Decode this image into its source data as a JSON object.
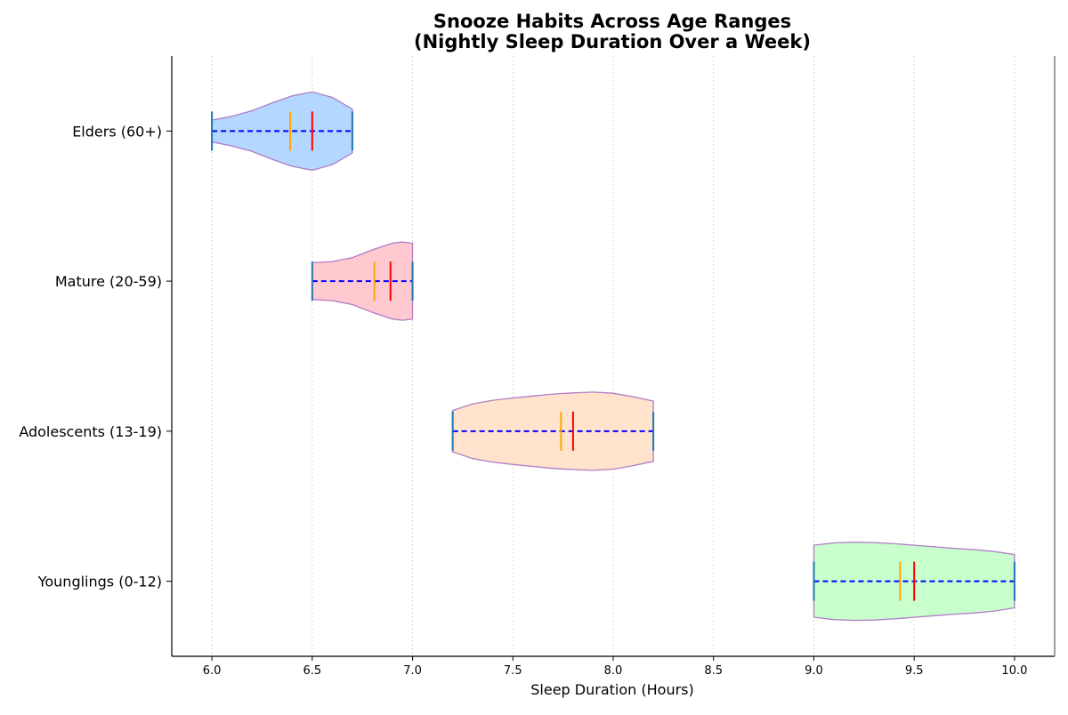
{
  "chart_data": {
    "type": "violin",
    "orientation": "horizontal",
    "title": "Snooze Habits Across Age Ranges",
    "subtitle": "(Nightly Sleep Duration Over a Week)",
    "xlabel": "Sleep Duration (Hours)",
    "ylabel": "",
    "xlim": [
      5.8,
      10.2
    ],
    "xticks": [
      6.0,
      6.5,
      7.0,
      7.5,
      8.0,
      8.5,
      9.0,
      9.5,
      10.0
    ],
    "xtick_labels": [
      "6.0",
      "6.5",
      "7.0",
      "7.5",
      "8.0",
      "8.5",
      "9.0",
      "9.5",
      "10.0"
    ],
    "grid": "x-dotted",
    "categories": [
      "Elders (60+)",
      "Mature (20-59)",
      "Adolescents (13-19)",
      "Younglings (0-12)"
    ],
    "series": [
      {
        "name": "Elders (60+)",
        "fill": "#b3d7ff",
        "min": 6.0,
        "max": 6.7,
        "mean": 6.5,
        "median": 6.39,
        "profile": [
          [
            6.0,
            0.28
          ],
          [
            6.1,
            0.38
          ],
          [
            6.2,
            0.52
          ],
          [
            6.3,
            0.72
          ],
          [
            6.4,
            0.9
          ],
          [
            6.5,
            1.0
          ],
          [
            6.6,
            0.86
          ],
          [
            6.7,
            0.56
          ]
        ]
      },
      {
        "name": "Mature (20-59)",
        "fill": "#ffc9cf",
        "min": 6.5,
        "max": 7.0,
        "mean": 6.89,
        "median": 6.81,
        "profile": [
          [
            6.5,
            0.47
          ],
          [
            6.6,
            0.5
          ],
          [
            6.7,
            0.6
          ],
          [
            6.8,
            0.8
          ],
          [
            6.9,
            0.97
          ],
          [
            6.95,
            1.0
          ],
          [
            7.0,
            0.97
          ]
        ]
      },
      {
        "name": "Adolescents (13-19)",
        "fill": "#ffe3cc",
        "min": 7.2,
        "max": 8.2,
        "mean": 7.8,
        "median": 7.74,
        "profile": [
          [
            7.2,
            0.53
          ],
          [
            7.3,
            0.7
          ],
          [
            7.4,
            0.79
          ],
          [
            7.5,
            0.85
          ],
          [
            7.6,
            0.9
          ],
          [
            7.7,
            0.95
          ],
          [
            7.8,
            0.98
          ],
          [
            7.9,
            1.0
          ],
          [
            8.0,
            0.97
          ],
          [
            8.1,
            0.88
          ],
          [
            8.2,
            0.77
          ]
        ]
      },
      {
        "name": "Younglings (0-12)",
        "fill": "#c9ffcc",
        "min": 9.0,
        "max": 10.0,
        "mean": 9.5,
        "median": 9.43,
        "profile": [
          [
            9.0,
            0.92
          ],
          [
            9.1,
            0.98
          ],
          [
            9.2,
            1.0
          ],
          [
            9.3,
            0.99
          ],
          [
            9.4,
            0.96
          ],
          [
            9.5,
            0.92
          ],
          [
            9.6,
            0.88
          ],
          [
            9.7,
            0.84
          ],
          [
            9.8,
            0.81
          ],
          [
            9.9,
            0.76
          ],
          [
            10.0,
            0.68
          ]
        ]
      }
    ],
    "colors": {
      "outline": "#b07cc6",
      "extrema": "#1f77b4",
      "range_line": "#0000ff",
      "mean_line": "#ff0000",
      "median_line": "#ffa500",
      "grid": "#cccccc",
      "axis": "#000000",
      "text": "#000000"
    }
  }
}
